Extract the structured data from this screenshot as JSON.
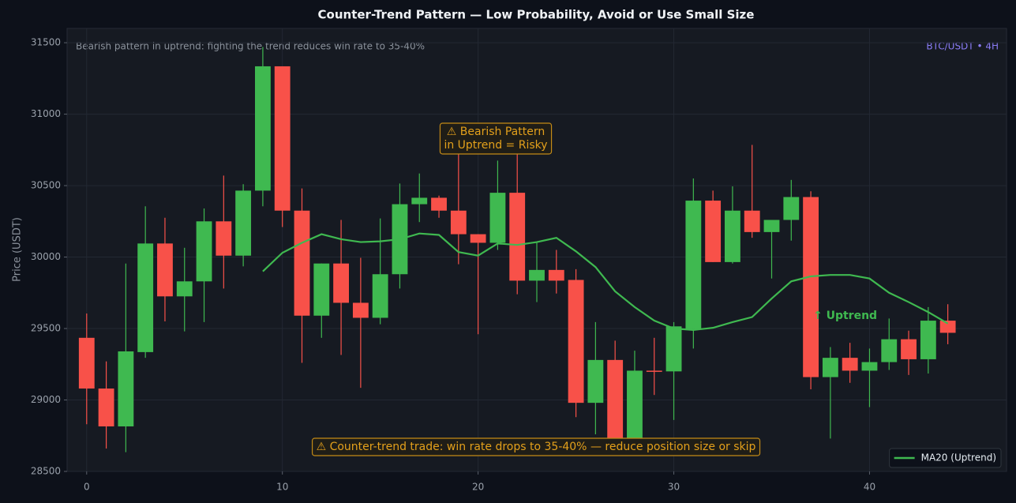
{
  "chart_data": {
    "type": "candlestick",
    "title": "Counter-Trend Pattern — Low Probability, Avoid or Use Small Size",
    "subtitle": "Bearish pattern in uptrend: fighting the trend reduces win rate to 35-40%",
    "badge": "BTC/USDT • 4H",
    "ylabel": "Price (USDT)",
    "up_color": "#3fb950",
    "down_color": "#f85149",
    "x": [
      0,
      1,
      2,
      3,
      4,
      5,
      6,
      7,
      8,
      9,
      10,
      11,
      12,
      13,
      14,
      15,
      16,
      17,
      18,
      19,
      20,
      21,
      22,
      23,
      24,
      25,
      26,
      27,
      28,
      29,
      30,
      31,
      32,
      33,
      34,
      35,
      36,
      37,
      38,
      39,
      40,
      41,
      42,
      43,
      44
    ],
    "open": [
      29435,
      29080,
      28815,
      29335,
      30095,
      29725,
      29830,
      30250,
      30010,
      30465,
      31335,
      30325,
      29590,
      29955,
      29680,
      29575,
      29880,
      30370,
      30415,
      30325,
      30160,
      30100,
      30450,
      29835,
      29910,
      29840,
      28980,
      29280,
      28705,
      29205,
      29200,
      29495,
      30395,
      29965,
      30325,
      30175,
      30260,
      30420,
      29160,
      29295,
      29205,
      29265,
      29425,
      29285,
      29555
    ],
    "high": [
      29605,
      29270,
      29955,
      30355,
      30275,
      30065,
      30340,
      30570,
      30510,
      31470,
      31335,
      30480,
      29955,
      30260,
      29995,
      30270,
      30515,
      30585,
      30430,
      30775,
      30160,
      30675,
      30775,
      30100,
      30050,
      29915,
      29545,
      29415,
      29345,
      29435,
      29545,
      30550,
      30465,
      30495,
      30785,
      30260,
      30540,
      30460,
      29370,
      29400,
      29360,
      29570,
      29485,
      29650,
      29670
    ],
    "low": [
      28830,
      28660,
      28635,
      29295,
      29550,
      29480,
      29545,
      29780,
      29935,
      30355,
      30210,
      29260,
      29435,
      29315,
      29085,
      29530,
      29780,
      30245,
      30275,
      29950,
      29460,
      30050,
      29740,
      29685,
      29745,
      28880,
      28760,
      28705,
      28705,
      29035,
      28860,
      29360,
      29965,
      29955,
      30135,
      29850,
      30115,
      29075,
      28730,
      29120,
      28950,
      29210,
      29175,
      29185,
      29390
    ],
    "close": [
      29080,
      28815,
      29340,
      30095,
      29725,
      29830,
      30250,
      30010,
      30465,
      31335,
      30325,
      29590,
      29955,
      29680,
      29575,
      29880,
      30370,
      30415,
      30325,
      30160,
      30100,
      30450,
      29835,
      29910,
      29835,
      28980,
      29280,
      28705,
      29205,
      29200,
      29515,
      30395,
      29965,
      30325,
      30175,
      30260,
      30420,
      29160,
      29295,
      29205,
      29265,
      29425,
      29285,
      29555,
      29470
    ],
    "series": [
      {
        "name": "MA20 (Uptrend)",
        "color": "#3fb950",
        "x": [
          9,
          10,
          11,
          12,
          13,
          14,
          15,
          16,
          17,
          18,
          19,
          20,
          21,
          22,
          23,
          24,
          25,
          26,
          27,
          28,
          29,
          30,
          31,
          32,
          33,
          34,
          35,
          36,
          37,
          38,
          39,
          40,
          41,
          42,
          43,
          44
        ],
        "values": [
          29900,
          30030,
          30100,
          30160,
          30125,
          30105,
          30110,
          30125,
          30165,
          30155,
          30035,
          30010,
          30095,
          30085,
          30105,
          30135,
          30040,
          29930,
          29760,
          29650,
          29555,
          29500,
          29490,
          29505,
          29545,
          29580,
          29710,
          29830,
          29865,
          29875,
          29875,
          29850,
          29750,
          29685,
          29615,
          29535
        ]
      }
    ],
    "annotations": [
      {
        "lines": [
          "⚠ Bearish Pattern",
          "in Uptrend = Risky"
        ],
        "color": "#e3a01b"
      },
      {
        "lines": [
          "↑ Uptrend"
        ],
        "color": "#3fb950"
      },
      {
        "lines": [
          "⚠ Counter-trend trade: win rate drops to 35-40% — reduce position size or skip"
        ],
        "color": "#e3a01b"
      }
    ],
    "xlim": [
      -1,
      47
    ],
    "ylim": [
      28500,
      31600
    ],
    "xticks": [
      0,
      10,
      20,
      30,
      40
    ],
    "yticks": [
      28500,
      29000,
      29500,
      30000,
      30500,
      31000,
      31500
    ],
    "grid": true,
    "legend": "lower right"
  }
}
